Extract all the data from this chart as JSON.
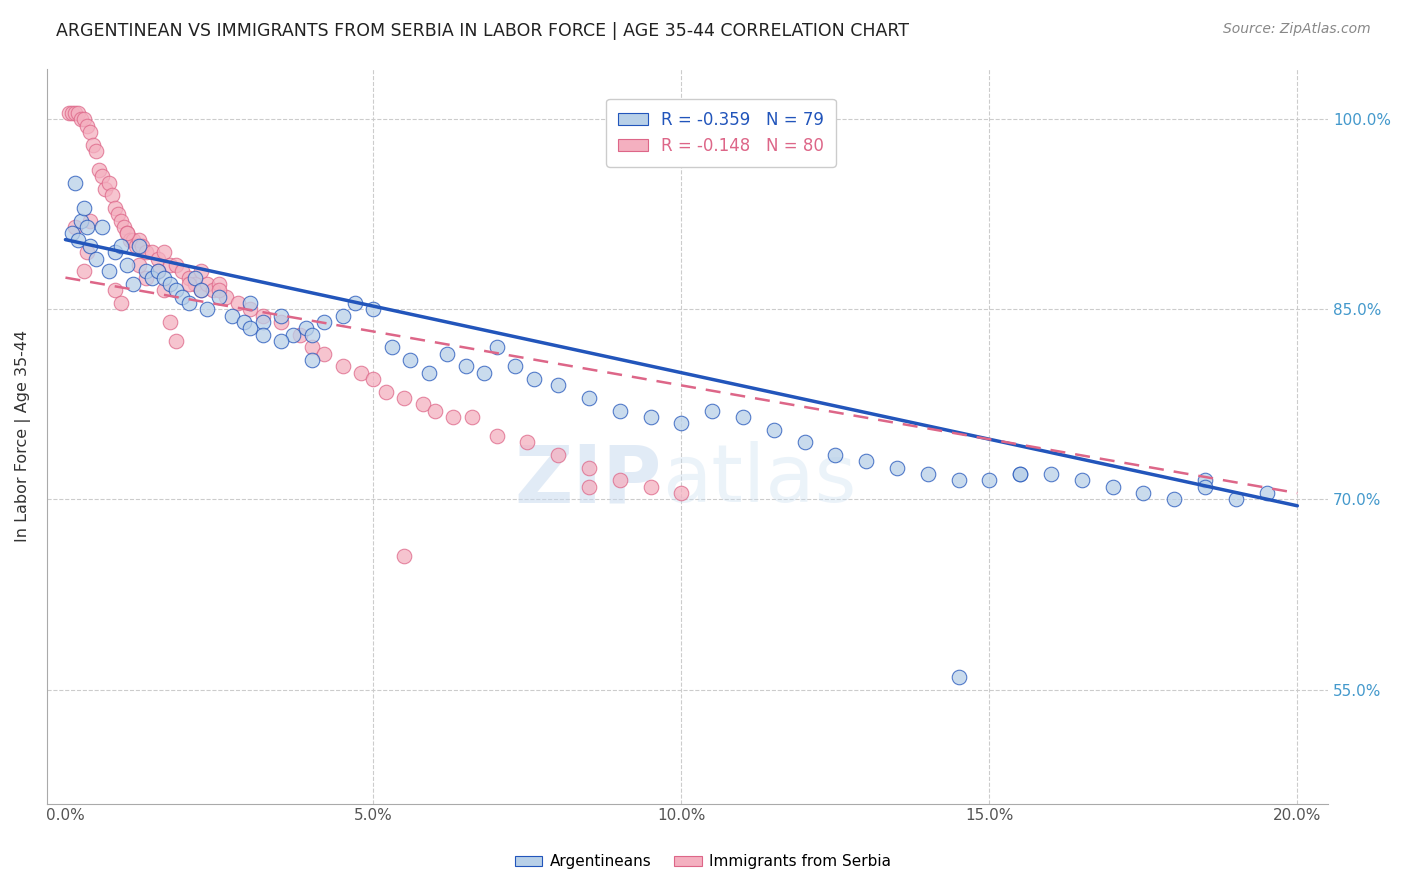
{
  "title": "ARGENTINEAN VS IMMIGRANTS FROM SERBIA IN LABOR FORCE | AGE 35-44 CORRELATION CHART",
  "source": "Source: ZipAtlas.com",
  "xlabel_vals": [
    0.0,
    5.0,
    10.0,
    15.0,
    20.0
  ],
  "ylabel": "In Labor Force | Age 35-44",
  "ylabel_vals": [
    55.0,
    70.0,
    85.0,
    100.0
  ],
  "xlim": [
    -0.3,
    20.5
  ],
  "ylim": [
    46.0,
    104.0
  ],
  "blue_R": -0.359,
  "blue_N": 79,
  "pink_R": -0.148,
  "pink_N": 80,
  "blue_color": "#b8d0e8",
  "pink_color": "#f4b0c0",
  "blue_line_color": "#2255bb",
  "pink_line_color": "#dd6688",
  "legend_label_blue": "Argentineans",
  "legend_label_pink": "Immigrants from Serbia",
  "watermark_zip": "ZIP",
  "watermark_atlas": "atlas",
  "blue_x": [
    0.1,
    0.15,
    0.2,
    0.25,
    0.3,
    0.35,
    0.4,
    0.5,
    0.6,
    0.7,
    0.8,
    0.9,
    1.0,
    1.1,
    1.2,
    1.3,
    1.4,
    1.5,
    1.6,
    1.7,
    1.8,
    1.9,
    2.0,
    2.1,
    2.2,
    2.3,
    2.5,
    2.7,
    2.9,
    3.0,
    3.2,
    3.5,
    3.7,
    3.9,
    4.0,
    4.2,
    4.5,
    4.7,
    5.0,
    5.3,
    5.6,
    5.9,
    6.2,
    6.5,
    6.8,
    7.0,
    7.3,
    7.6,
    8.0,
    8.5,
    9.0,
    9.5,
    10.0,
    10.5,
    11.0,
    11.5,
    12.0,
    12.5,
    13.0,
    13.5,
    14.0,
    14.5,
    15.0,
    15.5,
    16.0,
    16.5,
    17.0,
    17.5,
    18.0,
    18.5,
    19.0,
    19.5,
    3.0,
    3.2,
    3.5,
    4.0,
    14.5,
    15.5,
    18.5
  ],
  "blue_y": [
    91.0,
    95.0,
    90.5,
    92.0,
    93.0,
    91.5,
    90.0,
    89.0,
    91.5,
    88.0,
    89.5,
    90.0,
    88.5,
    87.0,
    90.0,
    88.0,
    87.5,
    88.0,
    87.5,
    87.0,
    86.5,
    86.0,
    85.5,
    87.5,
    86.5,
    85.0,
    86.0,
    84.5,
    84.0,
    85.5,
    84.0,
    84.5,
    83.0,
    83.5,
    83.0,
    84.0,
    84.5,
    85.5,
    85.0,
    82.0,
    81.0,
    80.0,
    81.5,
    80.5,
    80.0,
    82.0,
    80.5,
    79.5,
    79.0,
    78.0,
    77.0,
    76.5,
    76.0,
    77.0,
    76.5,
    75.5,
    74.5,
    73.5,
    73.0,
    72.5,
    72.0,
    71.5,
    71.5,
    72.0,
    72.0,
    71.5,
    71.0,
    70.5,
    70.0,
    71.5,
    70.0,
    70.5,
    83.5,
    83.0,
    82.5,
    81.0,
    56.0,
    72.0,
    71.0
  ],
  "pink_x": [
    0.05,
    0.1,
    0.15,
    0.2,
    0.25,
    0.3,
    0.35,
    0.4,
    0.45,
    0.5,
    0.55,
    0.6,
    0.65,
    0.7,
    0.75,
    0.8,
    0.85,
    0.9,
    0.95,
    1.0,
    1.05,
    1.1,
    1.15,
    1.2,
    1.25,
    1.3,
    1.4,
    1.5,
    1.6,
    1.7,
    1.8,
    1.9,
    2.0,
    2.1,
    2.2,
    2.3,
    2.4,
    2.5,
    2.6,
    2.8,
    3.0,
    3.2,
    3.5,
    3.8,
    4.0,
    4.2,
    4.5,
    4.8,
    5.0,
    5.2,
    5.5,
    5.8,
    6.0,
    6.3,
    6.6,
    7.0,
    7.5,
    8.0,
    8.5,
    9.0,
    9.5,
    10.0,
    0.3,
    0.35,
    0.4,
    0.8,
    0.9,
    1.0,
    1.2,
    1.3,
    1.5,
    1.6,
    1.7,
    1.8,
    2.0,
    2.2,
    2.5,
    0.15,
    5.5,
    8.5
  ],
  "pink_y": [
    100.5,
    100.5,
    100.5,
    100.5,
    100.0,
    100.0,
    99.5,
    99.0,
    98.0,
    97.5,
    96.0,
    95.5,
    94.5,
    95.0,
    94.0,
    93.0,
    92.5,
    92.0,
    91.5,
    91.0,
    90.5,
    90.5,
    90.0,
    90.5,
    90.0,
    89.5,
    89.5,
    89.0,
    89.5,
    88.5,
    88.5,
    88.0,
    87.5,
    87.0,
    86.5,
    87.0,
    86.5,
    87.0,
    86.0,
    85.5,
    85.0,
    84.5,
    84.0,
    83.0,
    82.0,
    81.5,
    80.5,
    80.0,
    79.5,
    78.5,
    78.0,
    77.5,
    77.0,
    76.5,
    76.5,
    75.0,
    74.5,
    73.5,
    72.5,
    71.5,
    71.0,
    70.5,
    88.0,
    89.5,
    92.0,
    86.5,
    85.5,
    91.0,
    88.5,
    87.5,
    88.0,
    86.5,
    84.0,
    82.5,
    87.0,
    88.0,
    86.5,
    91.5,
    65.5,
    71.0
  ]
}
